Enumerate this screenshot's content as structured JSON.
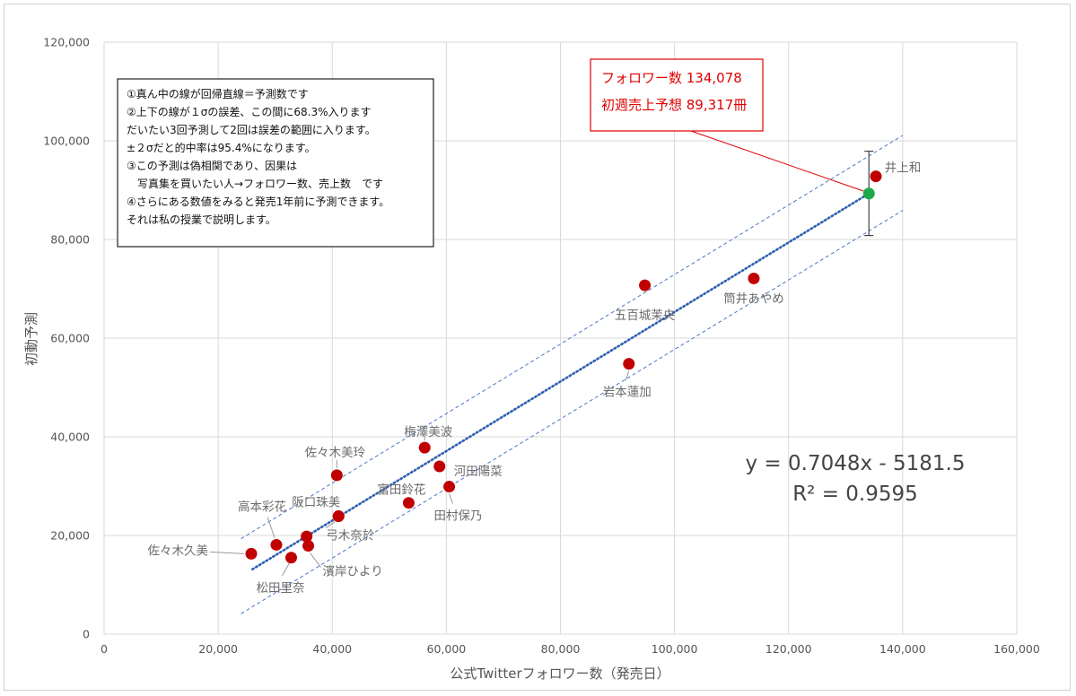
{
  "chart_data": {
    "type": "scatter",
    "xlabel": "公式Twitterフォロワー数（発売日）",
    "ylabel": "初動予測",
    "xlim": [
      0,
      160000
    ],
    "ylim": [
      0,
      120000
    ],
    "x_ticks": [
      "0",
      "20,000",
      "40,000",
      "60,000",
      "80,000",
      "100,000",
      "120,000",
      "140,000",
      "160,000"
    ],
    "y_ticks": [
      "0",
      "20,000",
      "40,000",
      "60,000",
      "80,000",
      "100,000",
      "120,000"
    ],
    "grid": true,
    "points": [
      {
        "label": "佐々木久美",
        "x": 25800,
        "y": 16300
      },
      {
        "label": "高本彩花",
        "x": 30200,
        "y": 18100
      },
      {
        "label": "松田里奈",
        "x": 32800,
        "y": 15500
      },
      {
        "label": "",
        "x": 35500,
        "y": 19800
      },
      {
        "label": "濱岸ひより",
        "x": 35800,
        "y": 17900
      },
      {
        "label": "佐々木美玲",
        "x": 40800,
        "y": 32200
      },
      {
        "label": "阪口珠美",
        "x": 41100,
        "y": 23900
      },
      {
        "label": "弓木奈於",
        "x": 41100,
        "y": 23900
      },
      {
        "label": "富田鈴花",
        "x": 53400,
        "y": 26600
      },
      {
        "label": "梅澤美波",
        "x": 56200,
        "y": 37800
      },
      {
        "label": "河田陽菜",
        "x": 58800,
        "y": 34000
      },
      {
        "label": "田村保乃",
        "x": 60500,
        "y": 29900
      },
      {
        "label": "岩本蓮加",
        "x": 92000,
        "y": 54800
      },
      {
        "label": "五百城茉央",
        "x": 94800,
        "y": 70700
      },
      {
        "label": "筒井あやめ",
        "x": 113900,
        "y": 72100
      },
      {
        "label": "井上和",
        "x": 135300,
        "y": 92800
      }
    ],
    "prediction": {
      "x": 134078,
      "y": 89317
    },
    "regression": {
      "slope": 0.7048,
      "intercept": -5181.5,
      "x_range": [
        26000,
        134078
      ],
      "sigma_offset": 7600
    },
    "error_bar": {
      "x": 134078,
      "low": 80800,
      "high": 97900
    },
    "equation": "y = 0.7048x - 5181.5",
    "r_squared": "R² = 0.9595",
    "callout": [
      "フォロワー数 134,078",
      "初週売上予想 89,317冊"
    ],
    "note_lines": [
      "①真ん中の線が回帰直線＝予測数です",
      "②上下の線が１σの誤差、この間に68.3%入ります",
      "だいたい3回予測して2回は誤差の範囲に入ります。",
      "±２σだと的中率は95.4%になります。",
      "③この予測は偽相関であり、因果は",
      "　写真集を買いたい人→フォロワー数、売上数　です",
      "④さらにある数値をみると発売1年前に予測できます。",
      "それは私の授業で説明します。"
    ],
    "colors": {
      "point": "#c00000",
      "prediction": "#1ea84a",
      "regression": "#2f5fb3",
      "callout": "#e00000"
    }
  }
}
